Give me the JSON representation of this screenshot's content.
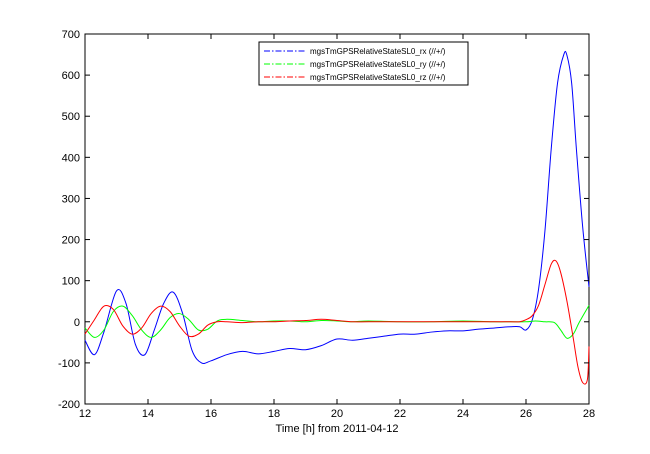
{
  "chart_data": {
    "type": "line",
    "title": "",
    "xlabel": "Time [h] from 2011-04-12",
    "ylabel": "",
    "xlim": [
      12,
      28
    ],
    "ylim": [
      -200,
      700
    ],
    "xticks": [
      "12",
      "14",
      "16",
      "18",
      "20",
      "22",
      "24",
      "26",
      "28"
    ],
    "yticks": [
      "-200",
      "-100",
      "0",
      "100",
      "200",
      "300",
      "400",
      "500",
      "600",
      "700"
    ],
    "grid": false,
    "legend_position": "top-center",
    "series": [
      {
        "name": "mgsTmGPSRelativeStateSL0_rx (//+/)",
        "color": "#0000ff",
        "x": [
          12.0,
          12.3,
          12.6,
          13.0,
          13.3,
          13.6,
          13.9,
          14.2,
          14.5,
          14.8,
          15.1,
          15.4,
          15.7,
          16.0,
          16.5,
          17.0,
          17.5,
          18.0,
          18.5,
          19.0,
          19.5,
          20.0,
          20.5,
          21.0,
          21.5,
          22.0,
          22.5,
          23.0,
          23.5,
          24.0,
          24.5,
          25.0,
          25.5,
          25.8,
          26.0,
          26.2,
          26.4,
          26.6,
          26.8,
          27.0,
          27.2,
          27.3,
          27.45,
          27.6,
          27.8,
          28.0
        ],
        "y": [
          -45,
          -80,
          -25,
          75,
          45,
          -55,
          -80,
          -20,
          45,
          72,
          20,
          -70,
          -100,
          -95,
          -80,
          -72,
          -78,
          -72,
          -65,
          -68,
          -58,
          -42,
          -45,
          -40,
          -35,
          -30,
          -30,
          -25,
          -22,
          -22,
          -18,
          -15,
          -12,
          -12,
          -20,
          5,
          80,
          220,
          420,
          580,
          650,
          648,
          580,
          420,
          230,
          85
        ]
      },
      {
        "name": "mgsTmGPSRelativeStateSL0_ry (//+/)",
        "color": "#00ff00",
        "x": [
          12.0,
          12.3,
          12.6,
          12.9,
          13.2,
          13.5,
          13.8,
          14.1,
          14.4,
          14.7,
          15.0,
          15.3,
          15.6,
          15.9,
          16.2,
          16.5,
          17.0,
          17.5,
          18.0,
          18.5,
          19.0,
          19.5,
          20.0,
          20.5,
          21.0,
          22.0,
          23.0,
          24.0,
          25.0,
          25.5,
          26.0,
          26.3,
          26.6,
          26.9,
          27.1,
          27.3,
          27.5,
          27.7,
          28.0
        ],
        "y": [
          -15,
          -38,
          -20,
          25,
          38,
          15,
          -20,
          -38,
          -20,
          10,
          20,
          5,
          -20,
          -18,
          2,
          6,
          3,
          0,
          2,
          2,
          0,
          3,
          2,
          0,
          2,
          0,
          0,
          2,
          0,
          0,
          0,
          2,
          0,
          -2,
          -20,
          -40,
          -30,
          0,
          40
        ]
      },
      {
        "name": "mgsTmGPSRelativeStateSL0_rz (//+/)",
        "color": "#ff0000",
        "x": [
          12.0,
          12.3,
          12.6,
          12.9,
          13.2,
          13.5,
          13.8,
          14.1,
          14.4,
          14.7,
          15.0,
          15.3,
          15.6,
          15.9,
          16.2,
          16.5,
          17.0,
          17.5,
          18.0,
          18.5,
          19.0,
          19.5,
          20.0,
          20.5,
          21.0,
          22.0,
          23.0,
          24.0,
          25.0,
          25.5,
          25.8,
          26.0,
          26.2,
          26.4,
          26.6,
          26.8,
          26.95,
          27.1,
          27.3,
          27.5,
          27.65,
          27.8,
          27.95,
          28.0
        ],
        "y": [
          -30,
          5,
          38,
          30,
          -10,
          -30,
          -15,
          20,
          38,
          25,
          -10,
          -35,
          -30,
          -8,
          0,
          0,
          -2,
          0,
          0,
          2,
          3,
          6,
          3,
          0,
          0,
          0,
          0,
          0,
          0,
          0,
          0,
          5,
          15,
          40,
          90,
          140,
          148,
          120,
          50,
          -40,
          -110,
          -148,
          -140,
          -60
        ]
      }
    ]
  }
}
